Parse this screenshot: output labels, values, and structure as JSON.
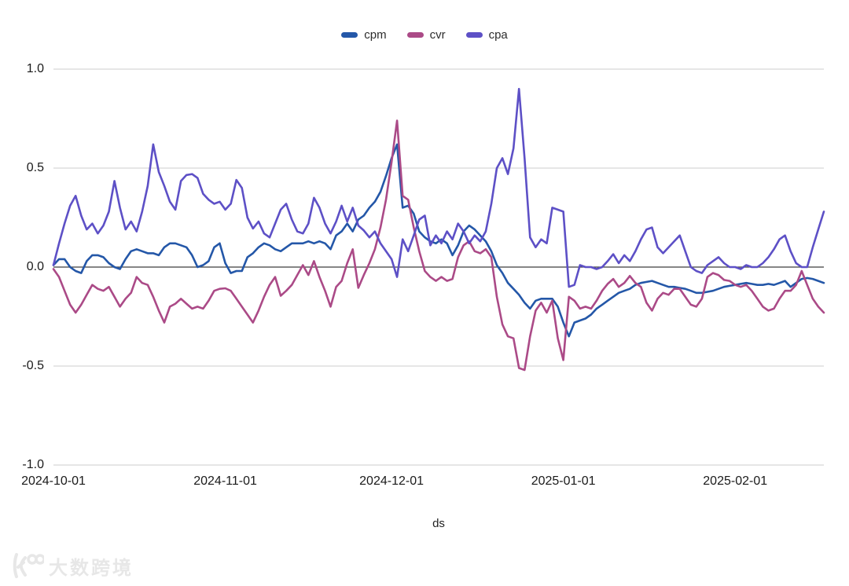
{
  "legend": {
    "items": [
      {
        "label": "cpm",
        "color": "#2457a8"
      },
      {
        "label": "cvr",
        "color": "#ab4a87"
      },
      {
        "label": "cpa",
        "color": "#5d50c6"
      }
    ]
  },
  "colors": {
    "gridline": "#d8d8d8",
    "zero_line": "#3d3d3d",
    "tick_text": "#1a1a1a",
    "background": "#ffffff"
  },
  "watermark": {
    "logo_icon": "k100-logo",
    "text": "大数跨境"
  },
  "chart_data": {
    "type": "line",
    "title": "",
    "xlabel": "ds",
    "ylabel": "",
    "ylim": [
      -1.0,
      1.0
    ],
    "grid": "horizontal",
    "legend_position": "top-center",
    "x_start": "2024-10-01",
    "x_end": "2025-02-17",
    "x_freq": "daily",
    "x_tick_labels": [
      "2024-10-01",
      "2024-11-01",
      "2024-12-01",
      "2025-01-01",
      "2025-02-01"
    ],
    "x_tick_indices": [
      0,
      31,
      61,
      92,
      123
    ],
    "y_tick_labels": [
      "1.0",
      "0.5",
      "0.0",
      "-0.5",
      "-1.0"
    ],
    "y_tick_values": [
      1.0,
      0.5,
      0.0,
      -0.5,
      -1.0
    ],
    "series": [
      {
        "name": "cpm",
        "color": "#2457a8",
        "values": [
          0.01,
          0.04,
          0.04,
          0.0,
          -0.02,
          -0.03,
          0.03,
          0.06,
          0.06,
          0.05,
          0.02,
          0.0,
          -0.01,
          0.04,
          0.08,
          0.09,
          0.08,
          0.07,
          0.07,
          0.06,
          0.1,
          0.12,
          0.12,
          0.11,
          0.1,
          0.06,
          0.0,
          0.01,
          0.03,
          0.1,
          0.12,
          0.02,
          -0.03,
          -0.02,
          -0.02,
          0.05,
          0.07,
          0.1,
          0.12,
          0.11,
          0.09,
          0.08,
          0.1,
          0.12,
          0.12,
          0.12,
          0.13,
          0.12,
          0.13,
          0.12,
          0.09,
          0.16,
          0.18,
          0.22,
          0.18,
          0.24,
          0.26,
          0.3,
          0.33,
          0.38,
          0.46,
          0.55,
          0.62,
          0.3,
          0.31,
          0.27,
          0.18,
          0.15,
          0.13,
          0.12,
          0.14,
          0.12,
          0.06,
          0.11,
          0.18,
          0.21,
          0.19,
          0.16,
          0.13,
          0.08,
          0.01,
          -0.03,
          -0.08,
          -0.11,
          -0.14,
          -0.18,
          -0.21,
          -0.17,
          -0.16,
          -0.16,
          -0.16,
          -0.2,
          -0.28,
          -0.35,
          -0.28,
          -0.27,
          -0.26,
          -0.24,
          -0.21,
          -0.19,
          -0.17,
          -0.15,
          -0.13,
          -0.12,
          -0.11,
          -0.09,
          -0.08,
          -0.075,
          -0.07,
          -0.08,
          -0.09,
          -0.1,
          -0.1,
          -0.105,
          -0.11,
          -0.12,
          -0.13,
          -0.13,
          -0.125,
          -0.12,
          -0.11,
          -0.1,
          -0.095,
          -0.09,
          -0.085,
          -0.08,
          -0.085,
          -0.09,
          -0.09,
          -0.085,
          -0.09,
          -0.08,
          -0.07,
          -0.1,
          -0.08,
          -0.06,
          -0.055,
          -0.06,
          -0.07,
          -0.08
        ]
      },
      {
        "name": "cvr",
        "color": "#ab4a87",
        "values": [
          -0.01,
          -0.05,
          -0.12,
          -0.19,
          -0.23,
          -0.19,
          -0.14,
          -0.09,
          -0.11,
          -0.12,
          -0.1,
          -0.15,
          -0.2,
          -0.16,
          -0.13,
          -0.05,
          -0.08,
          -0.09,
          -0.15,
          -0.22,
          -0.28,
          -0.2,
          -0.185,
          -0.16,
          -0.185,
          -0.21,
          -0.2,
          -0.21,
          -0.17,
          -0.12,
          -0.11,
          -0.107,
          -0.12,
          -0.16,
          -0.2,
          -0.24,
          -0.28,
          -0.22,
          -0.15,
          -0.09,
          -0.05,
          -0.145,
          -0.12,
          -0.09,
          -0.04,
          0.01,
          -0.04,
          0.03,
          -0.05,
          -0.12,
          -0.2,
          -0.1,
          -0.07,
          0.02,
          0.09,
          -0.105,
          -0.04,
          0.02,
          0.09,
          0.2,
          0.34,
          0.53,
          0.74,
          0.36,
          0.34,
          0.2,
          0.08,
          -0.02,
          -0.05,
          -0.07,
          -0.05,
          -0.07,
          -0.06,
          0.05,
          0.11,
          0.13,
          0.08,
          0.07,
          0.09,
          0.05,
          -0.15,
          -0.29,
          -0.35,
          -0.36,
          -0.51,
          -0.52,
          -0.35,
          -0.22,
          -0.18,
          -0.23,
          -0.17,
          -0.36,
          -0.47,
          -0.15,
          -0.17,
          -0.21,
          -0.2,
          -0.21,
          -0.17,
          -0.12,
          -0.085,
          -0.06,
          -0.1,
          -0.08,
          -0.045,
          -0.08,
          -0.1,
          -0.18,
          -0.22,
          -0.16,
          -0.13,
          -0.14,
          -0.11,
          -0.11,
          -0.15,
          -0.19,
          -0.2,
          -0.16,
          -0.05,
          -0.03,
          -0.04,
          -0.065,
          -0.07,
          -0.09,
          -0.1,
          -0.09,
          -0.12,
          -0.16,
          -0.2,
          -0.22,
          -0.21,
          -0.16,
          -0.12,
          -0.12,
          -0.09,
          -0.02,
          -0.09,
          -0.16,
          -0.2,
          -0.23
        ]
      },
      {
        "name": "cpa",
        "color": "#5d50c6",
        "values": [
          0.01,
          0.12,
          0.22,
          0.31,
          0.36,
          0.26,
          0.19,
          0.22,
          0.17,
          0.21,
          0.28,
          0.435,
          0.3,
          0.19,
          0.23,
          0.18,
          0.28,
          0.41,
          0.62,
          0.48,
          0.41,
          0.33,
          0.29,
          0.435,
          0.465,
          0.47,
          0.45,
          0.37,
          0.34,
          0.32,
          0.33,
          0.29,
          0.32,
          0.44,
          0.4,
          0.25,
          0.195,
          0.23,
          0.17,
          0.15,
          0.22,
          0.29,
          0.32,
          0.24,
          0.18,
          0.17,
          0.22,
          0.35,
          0.3,
          0.22,
          0.17,
          0.23,
          0.31,
          0.23,
          0.3,
          0.21,
          0.185,
          0.15,
          0.18,
          0.12,
          0.08,
          0.04,
          -0.05,
          0.14,
          0.08,
          0.16,
          0.24,
          0.26,
          0.11,
          0.16,
          0.12,
          0.18,
          0.14,
          0.22,
          0.18,
          0.12,
          0.16,
          0.13,
          0.18,
          0.32,
          0.5,
          0.55,
          0.47,
          0.6,
          0.9,
          0.55,
          0.15,
          0.1,
          0.14,
          0.12,
          0.3,
          0.29,
          0.28,
          -0.1,
          -0.09,
          0.01,
          0.0,
          0.0,
          -0.01,
          0.0,
          0.03,
          0.065,
          0.02,
          0.06,
          0.03,
          0.08,
          0.14,
          0.19,
          0.2,
          0.1,
          0.07,
          0.1,
          0.13,
          0.16,
          0.08,
          0.0,
          -0.02,
          -0.03,
          0.01,
          0.03,
          0.05,
          0.02,
          0.0,
          0.0,
          -0.01,
          0.01,
          0.0,
          0.0,
          0.02,
          0.05,
          0.09,
          0.14,
          0.16,
          0.08,
          0.02,
          0.0,
          0.0,
          0.1,
          0.19,
          0.28
        ]
      }
    ]
  }
}
